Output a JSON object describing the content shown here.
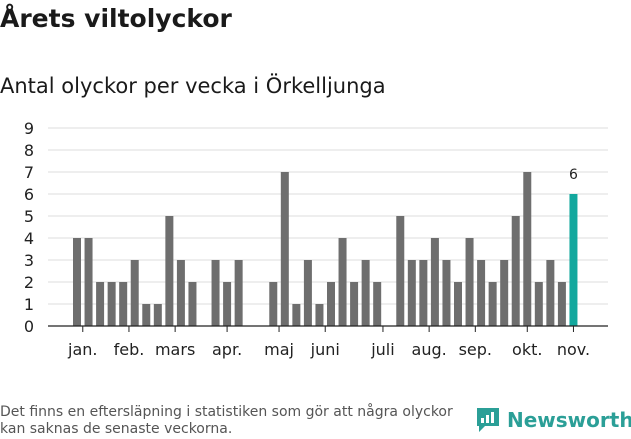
{
  "title": "Årets viltolyckor",
  "subtitle": "Antal olyckor per vecka i Örkelljunga",
  "footnote": "Det finns en eftersläpning i statistiken som gör att några olyckor kan saknas de senaste veckorna.",
  "brand": {
    "name": "Newsworthy",
    "icon": "newsworthy-logo-icon",
    "color": "#2b9f97"
  },
  "colors": {
    "bar": "#6e6e6e",
    "highlight": "#13a89e",
    "grid": "#dddddd",
    "axis": "#222222"
  },
  "chart_data": {
    "type": "bar",
    "x": [
      1,
      2,
      3,
      4,
      5,
      6,
      7,
      8,
      9,
      10,
      11,
      12,
      13,
      14,
      15,
      16,
      17,
      18,
      19,
      20,
      21,
      22,
      23,
      24,
      25,
      26,
      27,
      28,
      29,
      30,
      31,
      32,
      33,
      34,
      35,
      36,
      37,
      38,
      39,
      40,
      41,
      42,
      43,
      44,
      45
    ],
    "values": [
      4,
      4,
      2,
      2,
      2,
      3,
      1,
      1,
      5,
      3,
      2,
      0,
      3,
      2,
      3,
      0,
      0,
      2,
      7,
      1,
      3,
      1,
      2,
      4,
      2,
      3,
      2,
      0,
      5,
      3,
      3,
      4,
      3,
      2,
      4,
      3,
      2,
      3,
      5,
      7,
      2,
      3,
      2,
      6,
      null
    ],
    "highlight_index": 43,
    "highlight_label": "6",
    "month_labels": [
      {
        "label": "jan.",
        "week": 1.5
      },
      {
        "label": "feb.",
        "week": 5.5
      },
      {
        "label": "mars",
        "week": 9.5
      },
      {
        "label": "apr.",
        "week": 14
      },
      {
        "label": "maj",
        "week": 18.5
      },
      {
        "label": "juni",
        "week": 22.5
      },
      {
        "label": "juli",
        "week": 27.5
      },
      {
        "label": "aug.",
        "week": 31.5
      },
      {
        "label": "sep.",
        "week": 35.5
      },
      {
        "label": "okt.",
        "week": 40
      },
      {
        "label": "nov.",
        "week": 44
      }
    ],
    "yticks": [
      0,
      1,
      2,
      3,
      4,
      5,
      6,
      7,
      8,
      9
    ],
    "ylim": [
      0,
      9
    ],
    "grid": true,
    "xlabel": "",
    "ylabel": ""
  }
}
